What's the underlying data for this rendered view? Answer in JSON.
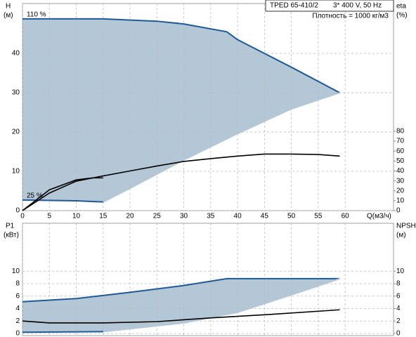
{
  "header": {
    "model": "TPED 65-410/2",
    "supply": "3* 400 V, 50 Hz",
    "density": "Плотность = 1000 кг/м3"
  },
  "chart_data": [
    {
      "type": "line",
      "ylabel": "H",
      "yunit": "(м)",
      "y2label": "eta",
      "y2unit": "(%)",
      "xlabel": "Q(м3/ч)",
      "xlim": [
        0,
        69
      ],
      "ylim": [
        0,
        52.7
      ],
      "y2lim": [
        0,
        208.8
      ],
      "xticks": [
        0,
        5,
        10,
        15,
        20,
        25,
        30,
        35,
        40,
        45,
        50,
        55,
        60
      ],
      "yticks": [
        0,
        10,
        20,
        30,
        40
      ],
      "y2ticks": [
        0,
        10,
        20,
        30,
        40,
        50,
        60,
        70,
        80
      ],
      "grid": true,
      "shade_color": "#b4c7d7",
      "series": [
        {
          "name": "110 %",
          "color": "#1f5a96",
          "x": [
            0,
            15,
            25,
            30,
            38,
            40,
            50,
            59
          ],
          "values": [
            48.8,
            48.8,
            48.2,
            47.5,
            45.5,
            43.5,
            36.5,
            30
          ]
        },
        {
          "color": "#b4c7d7",
          "x": [
            15,
            20,
            30,
            40,
            50,
            59
          ],
          "values": [
            2.2,
            5.7,
            12.9,
            19.6,
            25.9,
            30
          ]
        },
        {
          "name": "25 %",
          "color": "#1f5a96",
          "x": [
            0,
            10,
            15
          ],
          "values": [
            2.7,
            2.5,
            2.2
          ]
        },
        {
          "color": "#000000",
          "axis": "y2",
          "x": [
            0,
            5,
            10,
            15,
            20,
            25,
            30,
            35,
            40,
            45,
            50,
            55,
            59
          ],
          "values": [
            0,
            17.7,
            29.7,
            35,
            40,
            45,
            49.6,
            52.4,
            55,
            57,
            57,
            56.6,
            55
          ]
        },
        {
          "color": "#000000",
          "axis": "y2",
          "x": [
            0,
            5,
            10,
            13,
            15
          ],
          "values": [
            0,
            21,
            31,
            33,
            33
          ]
        }
      ]
    },
    {
      "type": "line",
      "ylabel": "P1",
      "yunit": "(кВт)",
      "y2label": "NPSH",
      "y2unit": "(м)",
      "xlim": [
        0,
        69
      ],
      "ylim": [
        -0.34,
        17.69
      ],
      "y2lim": [
        -0.34,
        17.69
      ],
      "xticks": [
        0,
        5,
        10,
        15,
        20,
        25,
        30,
        35,
        40,
        45,
        50,
        55,
        60
      ],
      "xtick_labels": false,
      "yticks": [
        0,
        2,
        4,
        6,
        8,
        10
      ],
      "y2ticks": [
        0,
        2,
        4,
        6,
        8,
        10
      ],
      "grid": true,
      "shade_color": "#b4c7d7",
      "series": [
        {
          "color": "#1f5a96",
          "x": [
            0,
            10,
            20,
            30,
            38,
            59
          ],
          "values": [
            5.1,
            5.6,
            6.6,
            7.7,
            8.8,
            8.8
          ]
        },
        {
          "color": "#b4c7d7",
          "x": [
            15,
            30,
            40,
            50,
            59
          ],
          "values": [
            0.3,
            1.7,
            3.4,
            6.2,
            8.8
          ]
        },
        {
          "color": "#1f5a96",
          "x": [
            0,
            15
          ],
          "values": [
            0.2,
            0.3
          ]
        },
        {
          "color": "#000000",
          "axis": "y2",
          "x": [
            0,
            5,
            15,
            25,
            35,
            45,
            59
          ],
          "values": [
            2.0,
            1.7,
            1.7,
            1.9,
            2.5,
            3.0,
            3.8
          ]
        }
      ]
    }
  ]
}
